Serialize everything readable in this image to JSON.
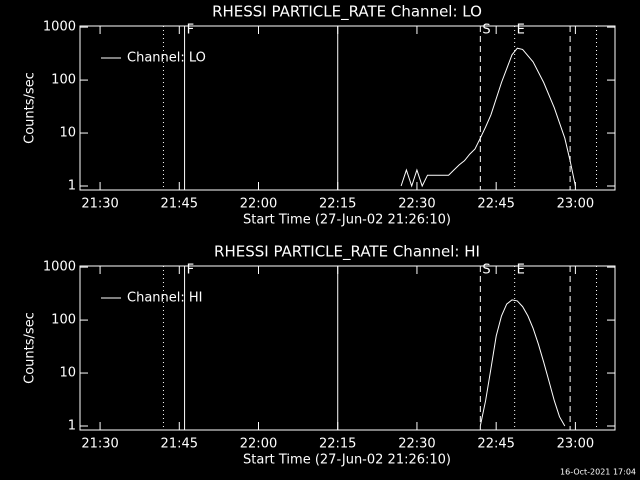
{
  "chart_data": [
    {
      "type": "line",
      "title": "RHESSI PARTICLE_RATE Channel: LO",
      "x_label": "Start Time (27-Jun-02 21:26:10)",
      "y_label": "Counts/sec",
      "log_y": true,
      "xlim": [
        1286.2,
        1387.5
      ],
      "ylim": [
        0.84,
        1050
      ],
      "xticks": [
        {
          "value": 1290,
          "label": "21:30"
        },
        {
          "value": 1305,
          "label": "21:45"
        },
        {
          "value": 1320,
          "label": "22:00"
        },
        {
          "value": 1335,
          "label": "22:15"
        },
        {
          "value": 1350,
          "label": "22:30"
        },
        {
          "value": 1365,
          "label": "22:45"
        },
        {
          "value": 1380,
          "label": "23:00"
        }
      ],
      "yticks": [
        1,
        10,
        100,
        1000
      ],
      "legend": "upper-left",
      "series": [
        {
          "name": "Channel: LO",
          "color": "#ffffff",
          "x": [
            1347,
            1348,
            1349,
            1350,
            1351,
            1352,
            1356,
            1357,
            1358,
            1359,
            1360,
            1361,
            1362,
            1363,
            1364,
            1366,
            1368,
            1369,
            1370,
            1372,
            1374,
            1376,
            1378,
            1379,
            1380
          ],
          "values": [
            1,
            2,
            1,
            2,
            1,
            1.6,
            1.6,
            2,
            2.5,
            3,
            4,
            5,
            8,
            13,
            22,
            90,
            300,
            400,
            380,
            220,
            90,
            30,
            8,
            3,
            1
          ]
        }
      ],
      "markers": [
        {
          "x": 1302,
          "style": "dotted"
        },
        {
          "x": 1306,
          "style": "solid",
          "label": "F"
        },
        {
          "x": 1335,
          "style": "solid"
        },
        {
          "x": 1362,
          "style": "dashed",
          "label": "S"
        },
        {
          "x": 1368.5,
          "style": "dotted",
          "label": "E"
        },
        {
          "x": 1379,
          "style": "dashed"
        },
        {
          "x": 1384,
          "style": "dotted"
        }
      ]
    },
    {
      "type": "line",
      "title": "RHESSI PARTICLE_RATE Channel: HI",
      "x_label": "Start Time (27-Jun-02 21:26:10)",
      "y_label": "Counts/sec",
      "log_y": true,
      "xlim": [
        1286.2,
        1387.5
      ],
      "ylim": [
        0.84,
        1050
      ],
      "xticks": [
        {
          "value": 1290,
          "label": "21:30"
        },
        {
          "value": 1305,
          "label": "21:45"
        },
        {
          "value": 1320,
          "label": "22:00"
        },
        {
          "value": 1335,
          "label": "22:15"
        },
        {
          "value": 1350,
          "label": "22:30"
        },
        {
          "value": 1365,
          "label": "22:45"
        },
        {
          "value": 1380,
          "label": "23:00"
        }
      ],
      "yticks": [
        1,
        10,
        100,
        1000
      ],
      "legend": "upper-left",
      "series": [
        {
          "name": "Channel: HI",
          "color": "#ffffff",
          "x": [
            1362,
            1363,
            1364,
            1365,
            1366,
            1367,
            1368,
            1369,
            1370,
            1371,
            1372,
            1373,
            1374,
            1375,
            1376,
            1377,
            1378
          ],
          "values": [
            1,
            3,
            12,
            50,
            120,
            200,
            240,
            230,
            180,
            120,
            70,
            35,
            16,
            7,
            3,
            1.5,
            1
          ]
        }
      ],
      "markers": [
        {
          "x": 1302,
          "style": "dotted"
        },
        {
          "x": 1306,
          "style": "solid",
          "label": "F"
        },
        {
          "x": 1335,
          "style": "solid"
        },
        {
          "x": 1362,
          "style": "dashed",
          "label": "S"
        },
        {
          "x": 1368.5,
          "style": "dotted",
          "label": "E"
        },
        {
          "x": 1379,
          "style": "dashed"
        },
        {
          "x": 1384,
          "style": "dotted"
        }
      ]
    }
  ],
  "footer": "16-Oct-2021 17:04"
}
